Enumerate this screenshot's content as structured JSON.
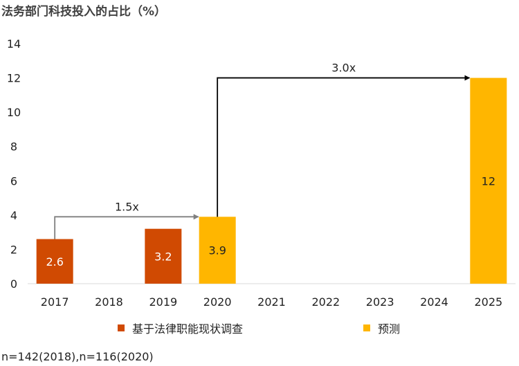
{
  "title": "法务部门科技投入的占比（%）",
  "chart_data": {
    "type": "bar",
    "categories": [
      "2017",
      "2018",
      "2019",
      "2020",
      "2021",
      "2022",
      "2023",
      "2024",
      "2025"
    ],
    "series": [
      {
        "name": "基于法律职能现状调查",
        "color": "#D04A02",
        "values": [
          2.6,
          null,
          3.2,
          null,
          null,
          null,
          null,
          null,
          null
        ],
        "labels": [
          "2.6",
          null,
          "3.2",
          null,
          null,
          null,
          null,
          null,
          null
        ]
      },
      {
        "name": "预测",
        "color": "#FFB600",
        "values": [
          null,
          null,
          null,
          3.9,
          null,
          null,
          null,
          null,
          12
        ],
        "labels": [
          null,
          null,
          null,
          "3.9",
          null,
          null,
          null,
          null,
          "12"
        ]
      }
    ],
    "ylim": [
      0,
      14
    ],
    "yticks": [
      "0",
      "2",
      "4",
      "6",
      "8",
      "10",
      "12",
      "14"
    ],
    "grid": false,
    "legend_position": "bottom",
    "annotations": [
      {
        "text": "1.5x",
        "from_category": "2017",
        "to_category": "2020",
        "arrow_color": "#7F7F7F"
      },
      {
        "text": "3.0x",
        "from_category": "2020",
        "to_category": "2025",
        "arrow_color": "#000000"
      }
    ]
  },
  "legend": {
    "items": [
      {
        "label": "基于法律职能现状调查",
        "color": "#D04A02"
      },
      {
        "label": "预测",
        "color": "#FFB600"
      }
    ]
  },
  "footnote": "n=142(2018),n=116(2020)"
}
